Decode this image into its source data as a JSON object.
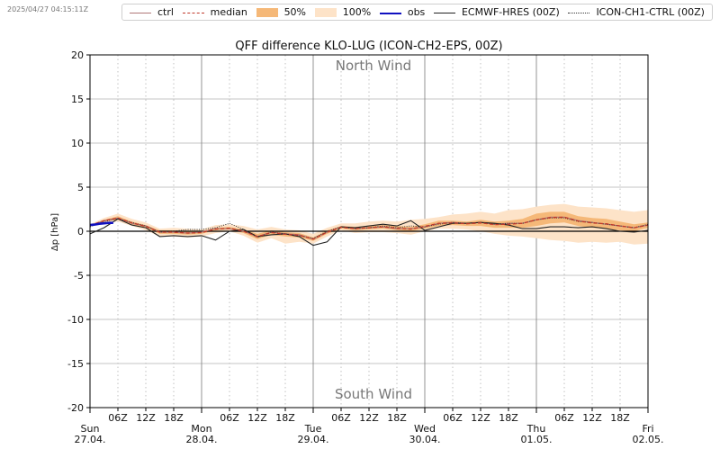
{
  "timestamp": "2025/04/27 04:15:11Z",
  "legend": [
    {
      "label": "ctrl",
      "kind": "line",
      "color": "#b07878",
      "style": "solid"
    },
    {
      "label": "median",
      "kind": "line",
      "color": "#c0392b",
      "style": "dashed"
    },
    {
      "label": "50%",
      "kind": "fill",
      "color": "#f5b878"
    },
    {
      "label": "100%",
      "kind": "fill",
      "color": "#fde3c8"
    },
    {
      "label": "obs",
      "kind": "line",
      "color": "#1010c0",
      "style": "solid-thick"
    },
    {
      "label": "ECMWF-HRES (00Z)",
      "kind": "line",
      "color": "#222222",
      "style": "solid"
    },
    {
      "label": "ICON-CH1-CTRL (00Z)",
      "kind": "line",
      "color": "#333333",
      "style": "dotted"
    }
  ],
  "chart_data": {
    "type": "line",
    "title": "QFF difference KLO-LUG (ICON-CH2-EPS, 00Z)",
    "ylabel": "Δp [hPa]",
    "ylim": [
      -20,
      20
    ],
    "yticks": [
      -20,
      -15,
      -10,
      -5,
      0,
      5,
      10,
      15,
      20
    ],
    "xlim_hours": [
      0,
      120
    ],
    "annotations": {
      "top": "North Wind",
      "bottom": "South Wind"
    },
    "x_tick_labels": [
      {
        "h": 6,
        "label": "06Z"
      },
      {
        "h": 12,
        "label": "12Z"
      },
      {
        "h": 18,
        "label": "18Z"
      },
      {
        "h": 30,
        "label": "06Z"
      },
      {
        "h": 36,
        "label": "12Z"
      },
      {
        "h": 42,
        "label": "18Z"
      },
      {
        "h": 54,
        "label": "06Z"
      },
      {
        "h": 60,
        "label": "12Z"
      },
      {
        "h": 66,
        "label": "18Z"
      },
      {
        "h": 78,
        "label": "06Z"
      },
      {
        "h": 84,
        "label": "12Z"
      },
      {
        "h": 90,
        "label": "18Z"
      },
      {
        "h": 102,
        "label": "06Z"
      },
      {
        "h": 108,
        "label": "12Z"
      },
      {
        "h": 114,
        "label": "18Z"
      }
    ],
    "day_labels": [
      {
        "h": 0,
        "day": "Sun",
        "date": "27.04."
      },
      {
        "h": 24,
        "day": "Mon",
        "date": "28.04."
      },
      {
        "h": 48,
        "day": "Tue",
        "date": "29.04."
      },
      {
        "h": 72,
        "day": "Wed",
        "date": "30.04."
      },
      {
        "h": 96,
        "day": "Thu",
        "date": "01.05."
      },
      {
        "h": 120,
        "day": "Fri",
        "date": "02.05."
      }
    ],
    "x_hours": [
      0,
      3,
      6,
      9,
      12,
      15,
      18,
      21,
      24,
      27,
      30,
      33,
      36,
      39,
      42,
      45,
      48,
      51,
      54,
      57,
      60,
      63,
      66,
      69,
      72,
      75,
      78,
      81,
      84,
      87,
      90,
      93,
      96,
      99,
      102,
      105,
      108,
      111,
      114,
      117,
      120
    ],
    "series": [
      {
        "name": "100%",
        "kind": "band",
        "lower": [
          0.5,
          1.0,
          1.1,
          0.6,
          0.1,
          -0.6,
          -0.6,
          -0.7,
          -0.6,
          -0.2,
          0.0,
          -0.5,
          -1.3,
          -0.8,
          -1.4,
          -1.2,
          -1.4,
          -0.6,
          0.1,
          -0.2,
          -0.1,
          -0.1,
          -0.2,
          -0.4,
          0.0,
          0.3,
          0.3,
          0.2,
          0.0,
          -0.3,
          -0.5,
          -0.6,
          -0.8,
          -1.0,
          -1.1,
          -1.3,
          -1.2,
          -1.3,
          -1.2,
          -1.5,
          -1.4
        ],
        "upper": [
          0.8,
          1.5,
          2.0,
          1.4,
          1.0,
          0.3,
          0.4,
          0.3,
          0.2,
          0.7,
          0.8,
          0.6,
          0.2,
          0.5,
          0.2,
          0.1,
          -0.3,
          0.4,
          0.9,
          0.9,
          1.1,
          1.2,
          1.1,
          1.3,
          1.4,
          1.6,
          1.9,
          2.0,
          2.2,
          2.0,
          2.4,
          2.5,
          2.8,
          3.0,
          3.1,
          2.8,
          2.7,
          2.6,
          2.4,
          2.2,
          2.4
        ]
      },
      {
        "name": "50%",
        "kind": "band",
        "lower": [
          0.6,
          1.1,
          1.3,
          0.8,
          0.4,
          -0.3,
          -0.3,
          -0.4,
          -0.3,
          0.1,
          0.2,
          -0.2,
          -0.9,
          -0.4,
          -0.6,
          -0.7,
          -1.1,
          -0.3,
          0.3,
          0.1,
          0.2,
          0.3,
          0.1,
          0.0,
          0.3,
          0.6,
          0.7,
          0.6,
          0.6,
          0.4,
          0.4,
          0.4,
          0.6,
          0.9,
          1.0,
          0.6,
          0.4,
          0.3,
          0.1,
          0.0,
          0.4
        ],
        "upper": [
          0.7,
          1.3,
          1.7,
          1.1,
          0.7,
          0.1,
          0.1,
          0.0,
          0.0,
          0.4,
          0.5,
          0.2,
          -0.3,
          0.1,
          -0.1,
          -0.2,
          -0.7,
          0.1,
          0.6,
          0.5,
          0.6,
          0.7,
          0.6,
          0.5,
          0.8,
          1.2,
          1.2,
          1.1,
          1.3,
          1.1,
          1.2,
          1.4,
          2.0,
          2.2,
          2.2,
          1.7,
          1.5,
          1.4,
          1.1,
          0.8,
          1.0
        ]
      },
      {
        "name": "ctrl",
        "kind": "line",
        "y": [
          0.6,
          1.2,
          1.5,
          0.9,
          0.6,
          -0.1,
          -0.1,
          -0.2,
          -0.1,
          0.3,
          0.3,
          0.0,
          -0.6,
          -0.1,
          -0.3,
          -0.4,
          -0.9,
          -0.1,
          0.5,
          0.3,
          0.4,
          0.5,
          0.3,
          0.3,
          0.5,
          0.9,
          1.0,
          0.9,
          1.0,
          0.8,
          0.9,
          0.9,
          1.3,
          1.6,
          1.6,
          1.2,
          1.0,
          0.8,
          0.6,
          0.4,
          0.7
        ]
      },
      {
        "name": "median",
        "kind": "line",
        "y": [
          0.65,
          1.2,
          1.5,
          0.95,
          0.55,
          -0.1,
          -0.1,
          -0.2,
          -0.15,
          0.25,
          0.35,
          0.0,
          -0.6,
          -0.15,
          -0.35,
          -0.45,
          -0.9,
          -0.1,
          0.45,
          0.3,
          0.4,
          0.5,
          0.35,
          0.25,
          0.55,
          0.9,
          0.95,
          0.85,
          0.95,
          0.75,
          0.8,
          0.9,
          1.3,
          1.55,
          1.6,
          1.15,
          0.95,
          0.85,
          0.6,
          0.4,
          0.7
        ]
      },
      {
        "name": "ECMWF-HRES (00Z)",
        "kind": "line",
        "y": [
          -0.3,
          0.4,
          1.4,
          0.7,
          0.4,
          -0.6,
          -0.5,
          -0.6,
          -0.5,
          -1.0,
          0.0,
          0.2,
          -0.6,
          -0.4,
          -0.3,
          -0.6,
          -1.6,
          -1.2,
          0.5,
          0.4,
          0.6,
          0.8,
          0.6,
          1.2,
          0.1,
          0.5,
          0.9,
          0.9,
          1.0,
          0.9,
          0.7,
          0.3,
          0.3,
          0.5,
          0.5,
          0.4,
          0.5,
          0.3,
          0.0,
          -0.1,
          0.1
        ]
      },
      {
        "name": "ICON-CH1-CTRL (00Z)",
        "kind": "line",
        "y": [
          0.5,
          1.1,
          1.4,
          1.0,
          0.6,
          -0.1,
          0.0,
          0.2,
          0.2,
          0.4,
          0.9,
          0.2,
          -0.7,
          -0.1,
          -0.3,
          -0.5,
          -0.8,
          0.0,
          0.5,
          0.3,
          0.4,
          0.6,
          0.4,
          0.6,
          0.5,
          0.8,
          1.0,
          0.9,
          1.0,
          0.8,
          0.9,
          0.9,
          1.3,
          1.5,
          1.5,
          1.1,
          1.0,
          0.8,
          0.6,
          0.4,
          0.8
        ]
      },
      {
        "name": "obs",
        "kind": "line",
        "x": [
          0,
          1,
          2,
          3,
          4,
          5
        ],
        "y": [
          0.7,
          0.75,
          0.85,
          0.9,
          0.95,
          0.95
        ]
      }
    ]
  }
}
